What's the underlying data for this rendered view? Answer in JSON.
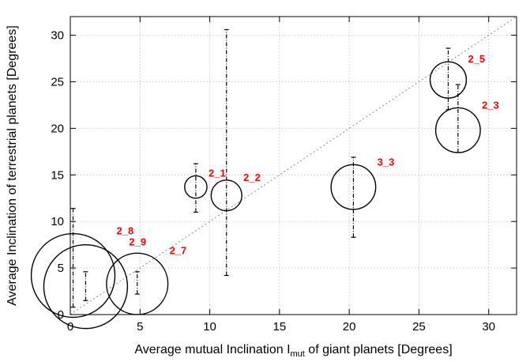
{
  "chart_data": {
    "type": "scatter",
    "title": "",
    "xlabel": {
      "main": "Average mutual Inclination I",
      "sub": "mut",
      "rest": " of giant planets [Degrees]"
    },
    "ylabel": "Average Inclination of terrestrial planets [Degrees]",
    "xlim": [
      0,
      32
    ],
    "ylim": [
      0,
      32
    ],
    "xticks": [
      0,
      5,
      10,
      15,
      20,
      25,
      30
    ],
    "yticks": [
      0,
      5,
      10,
      15,
      20,
      25,
      30
    ],
    "grid": true,
    "reference_line": {
      "from": [
        0,
        0
      ],
      "to": [
        32,
        32
      ],
      "style": "dotted"
    },
    "colors": {
      "label": "#ff0000",
      "marker": "#000000",
      "grid": "#c8c8c8"
    },
    "points": [
      {
        "label": "2_8",
        "x": 0.2,
        "y": 4.2,
        "err_low": 0.8,
        "err_high": 11.4,
        "size": 3.0
      },
      {
        "label": "2_9",
        "x": 1.1,
        "y": 3.0,
        "err_low": 1.5,
        "err_high": 4.6,
        "size": 3.0
      },
      {
        "label": "2_7",
        "x": 4.8,
        "y": 3.3,
        "err_low": 2.2,
        "err_high": 4.6,
        "size": 2.2
      },
      {
        "label": "2_1",
        "x": 9.0,
        "y": 13.7,
        "err_low": 11.0,
        "err_high": 16.2,
        "size": 0.8
      },
      {
        "label": "2_2",
        "x": 11.2,
        "y": 12.8,
        "err_low": 4.2,
        "err_high": 30.6,
        "size": 1.1
      },
      {
        "label": "3_3",
        "x": 20.3,
        "y": 13.7,
        "err_low": 8.3,
        "err_high": 16.9,
        "size": 1.6
      },
      {
        "label": "2_5",
        "x": 27.1,
        "y": 25.2,
        "err_low": 22.0,
        "err_high": 28.6,
        "size": 1.3
      },
      {
        "label": "2_3",
        "x": 27.8,
        "y": 19.8,
        "err_low": 17.4,
        "err_high": 24.7,
        "size": 1.6
      }
    ]
  }
}
